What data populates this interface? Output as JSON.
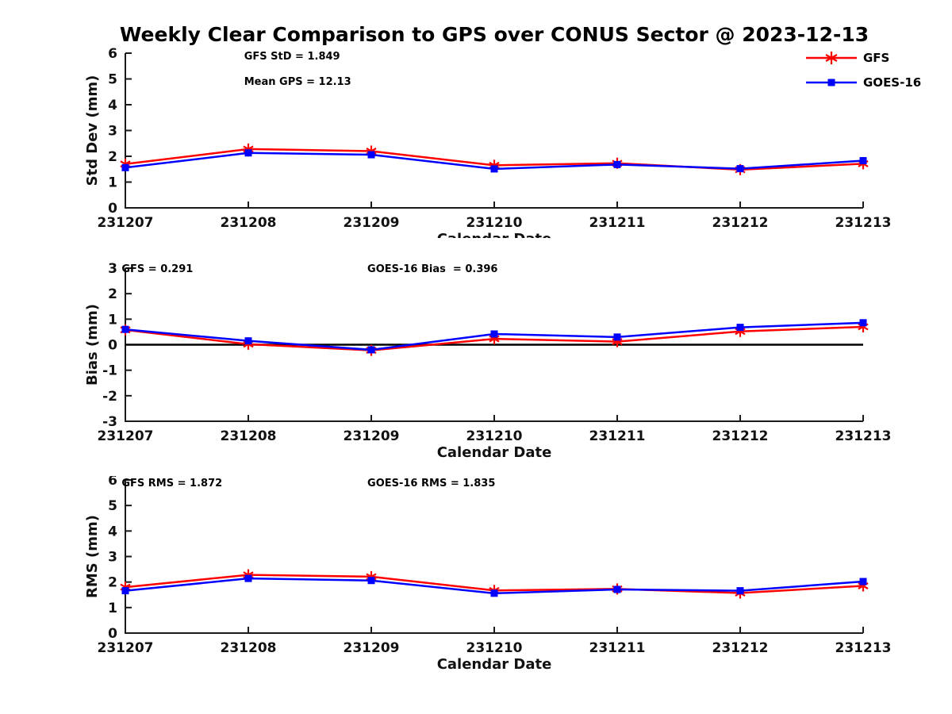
{
  "title": "Weekly Clear Comparison to GPS over CONUS Sector @ 2023-12-13",
  "x_axis": {
    "label": "Calendar Date",
    "categories": [
      "231207",
      "231208",
      "231209",
      "231210",
      "231211",
      "231212",
      "231213"
    ]
  },
  "legend": {
    "position": "top-right",
    "items": [
      {
        "label": "GFS",
        "color": "#ff0000",
        "marker": "star"
      },
      {
        "label": "GOES-16",
        "color": "#0000ff",
        "marker": "square"
      }
    ]
  },
  "colors": {
    "gfs": "#ff0000",
    "goes16": "#0000ff",
    "axis": "#1a1a1a",
    "zero_line": "#000000",
    "background": "#ffffff"
  },
  "chart_data": [
    {
      "type": "line",
      "name": "std-dev",
      "title": "",
      "xlabel": "Calendar Date",
      "ylabel": "Std Dev (mm)",
      "ylim": [
        0,
        6
      ],
      "yticks": [
        0,
        1,
        2,
        3,
        4,
        5,
        6
      ],
      "grid": false,
      "zero_line": false,
      "show_legend": true,
      "annotations": [
        {
          "text": "GFS StD = 1.849",
          "fx": 0.161,
          "fy": 0.04
        },
        {
          "text": "Mean GPS = 12.13",
          "fx": 0.161,
          "fy": 0.205
        }
      ],
      "series": [
        {
          "name": "GFS",
          "color": "#ff0000",
          "marker": "star",
          "values": [
            1.7,
            2.28,
            2.2,
            1.65,
            1.73,
            1.48,
            1.71
          ]
        },
        {
          "name": "GOES-16",
          "color": "#0000ff",
          "marker": "square",
          "values": [
            1.56,
            2.13,
            2.06,
            1.51,
            1.68,
            1.52,
            1.83
          ]
        }
      ]
    },
    {
      "type": "line",
      "name": "bias",
      "title": "",
      "xlabel": "Calendar Date",
      "ylabel": "Bias (mm)",
      "ylim": [
        -3,
        3
      ],
      "yticks": [
        -3,
        -2,
        -1,
        0,
        1,
        2,
        3
      ],
      "grid": false,
      "zero_line": true,
      "show_legend": false,
      "annotations": [
        {
          "text": "GFS = 0.291",
          "fx": -0.005,
          "fy": 0.026
        },
        {
          "text": "GOES-16 Bias  = 0.396",
          "fx": 0.328,
          "fy": 0.026
        }
      ],
      "series": [
        {
          "name": "GFS",
          "color": "#ff0000",
          "marker": "star",
          "values": [
            0.58,
            0.02,
            -0.22,
            0.23,
            0.12,
            0.52,
            0.7
          ]
        },
        {
          "name": "GOES-16",
          "color": "#0000ff",
          "marker": "square",
          "values": [
            0.6,
            0.15,
            -0.2,
            0.42,
            0.3,
            0.68,
            0.86
          ]
        }
      ]
    },
    {
      "type": "line",
      "name": "rms",
      "title": "",
      "xlabel": "Calendar Date",
      "ylabel": "RMS (mm)",
      "ylim": [
        0,
        6
      ],
      "yticks": [
        0,
        1,
        2,
        3,
        4,
        5,
        6
      ],
      "grid": false,
      "zero_line": false,
      "show_legend": false,
      "annotations": [
        {
          "text": "GFS RMS = 1.872",
          "fx": -0.005,
          "fy": 0.041
        },
        {
          "text": "GOES-16 RMS = 1.835",
          "fx": 0.328,
          "fy": 0.041
        }
      ],
      "series": [
        {
          "name": "GFS",
          "color": "#ff0000",
          "marker": "star",
          "values": [
            1.8,
            2.28,
            2.21,
            1.67,
            1.73,
            1.57,
            1.85
          ]
        },
        {
          "name": "GOES-16",
          "color": "#0000ff",
          "marker": "square",
          "values": [
            1.66,
            2.14,
            2.06,
            1.56,
            1.71,
            1.66,
            2.02
          ]
        }
      ]
    }
  ]
}
